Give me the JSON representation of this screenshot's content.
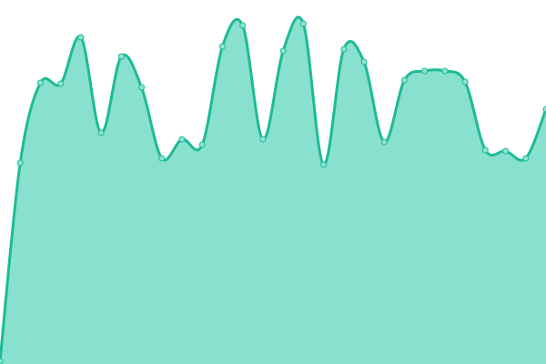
{
  "chart_data": {
    "type": "area",
    "title": "",
    "xlabel": "",
    "ylabel": "",
    "x": [
      0,
      1,
      2,
      3,
      4,
      5,
      6,
      7,
      8,
      9,
      10,
      11,
      12,
      13,
      14,
      15,
      16,
      17,
      18,
      19,
      20,
      21,
      22,
      23,
      24,
      25,
      26,
      27
    ],
    "values": [
      3,
      221,
      309,
      308,
      359,
      254,
      338,
      304,
      226,
      247,
      241,
      349,
      372,
      247,
      344,
      374,
      219,
      346,
      332,
      244,
      312,
      322,
      322,
      310,
      235,
      234,
      226,
      280
    ],
    "ylim": [
      0,
      400
    ],
    "grid": false,
    "axes_visible": false,
    "smooth": true,
    "show_markers": true,
    "colors": {
      "line": "#1dbb95",
      "fill": "#88e0cf",
      "marker_fill": "#8fe3d2",
      "marker_stroke": "#1dbb95"
    }
  }
}
